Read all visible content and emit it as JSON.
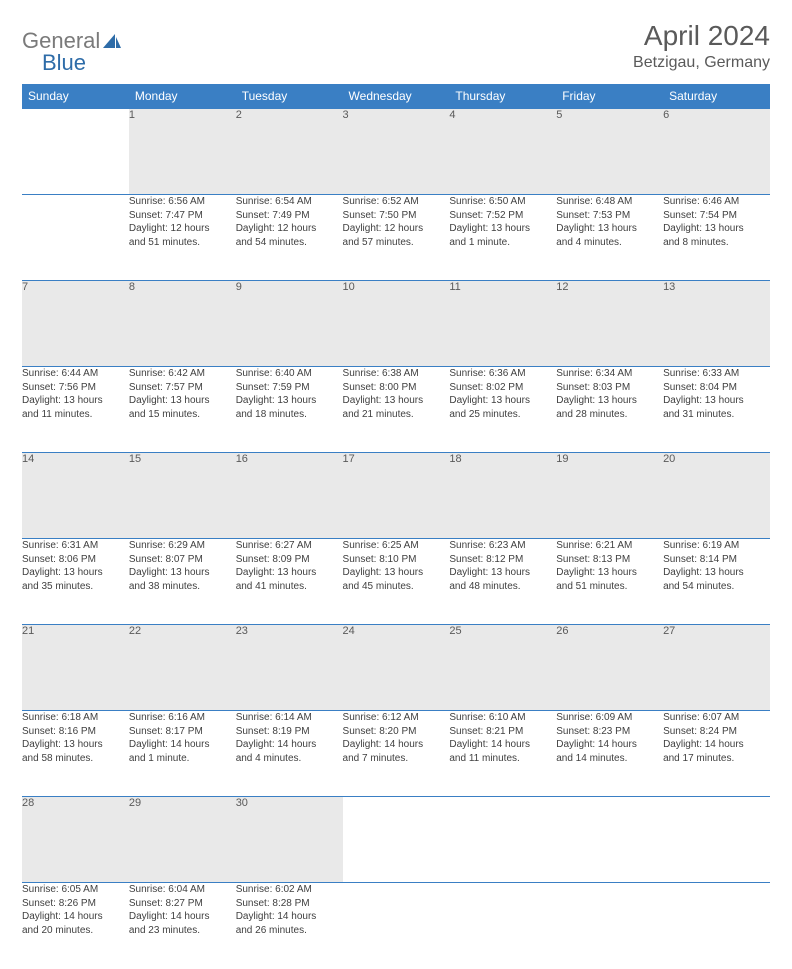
{
  "logo": {
    "part1": "General",
    "part2": "Blue"
  },
  "title": "April 2024",
  "location": "Betzigau, Germany",
  "colors": {
    "header_bg": "#3a7fc4",
    "header_fg": "#ffffff",
    "daynum_bg": "#e9e9e9",
    "border": "#3a7fc4",
    "text": "#404040",
    "logo_gray": "#7a7a7a",
    "logo_blue": "#2e6ca8"
  },
  "weekdays": [
    "Sunday",
    "Monday",
    "Tuesday",
    "Wednesday",
    "Thursday",
    "Friday",
    "Saturday"
  ],
  "weeks": [
    [
      null,
      {
        "n": "1",
        "l1": "Sunrise: 6:56 AM",
        "l2": "Sunset: 7:47 PM",
        "l3": "Daylight: 12 hours",
        "l4": "and 51 minutes."
      },
      {
        "n": "2",
        "l1": "Sunrise: 6:54 AM",
        "l2": "Sunset: 7:49 PM",
        "l3": "Daylight: 12 hours",
        "l4": "and 54 minutes."
      },
      {
        "n": "3",
        "l1": "Sunrise: 6:52 AM",
        "l2": "Sunset: 7:50 PM",
        "l3": "Daylight: 12 hours",
        "l4": "and 57 minutes."
      },
      {
        "n": "4",
        "l1": "Sunrise: 6:50 AM",
        "l2": "Sunset: 7:52 PM",
        "l3": "Daylight: 13 hours",
        "l4": "and 1 minute."
      },
      {
        "n": "5",
        "l1": "Sunrise: 6:48 AM",
        "l2": "Sunset: 7:53 PM",
        "l3": "Daylight: 13 hours",
        "l4": "and 4 minutes."
      },
      {
        "n": "6",
        "l1": "Sunrise: 6:46 AM",
        "l2": "Sunset: 7:54 PM",
        "l3": "Daylight: 13 hours",
        "l4": "and 8 minutes."
      }
    ],
    [
      {
        "n": "7",
        "l1": "Sunrise: 6:44 AM",
        "l2": "Sunset: 7:56 PM",
        "l3": "Daylight: 13 hours",
        "l4": "and 11 minutes."
      },
      {
        "n": "8",
        "l1": "Sunrise: 6:42 AM",
        "l2": "Sunset: 7:57 PM",
        "l3": "Daylight: 13 hours",
        "l4": "and 15 minutes."
      },
      {
        "n": "9",
        "l1": "Sunrise: 6:40 AM",
        "l2": "Sunset: 7:59 PM",
        "l3": "Daylight: 13 hours",
        "l4": "and 18 minutes."
      },
      {
        "n": "10",
        "l1": "Sunrise: 6:38 AM",
        "l2": "Sunset: 8:00 PM",
        "l3": "Daylight: 13 hours",
        "l4": "and 21 minutes."
      },
      {
        "n": "11",
        "l1": "Sunrise: 6:36 AM",
        "l2": "Sunset: 8:02 PM",
        "l3": "Daylight: 13 hours",
        "l4": "and 25 minutes."
      },
      {
        "n": "12",
        "l1": "Sunrise: 6:34 AM",
        "l2": "Sunset: 8:03 PM",
        "l3": "Daylight: 13 hours",
        "l4": "and 28 minutes."
      },
      {
        "n": "13",
        "l1": "Sunrise: 6:33 AM",
        "l2": "Sunset: 8:04 PM",
        "l3": "Daylight: 13 hours",
        "l4": "and 31 minutes."
      }
    ],
    [
      {
        "n": "14",
        "l1": "Sunrise: 6:31 AM",
        "l2": "Sunset: 8:06 PM",
        "l3": "Daylight: 13 hours",
        "l4": "and 35 minutes."
      },
      {
        "n": "15",
        "l1": "Sunrise: 6:29 AM",
        "l2": "Sunset: 8:07 PM",
        "l3": "Daylight: 13 hours",
        "l4": "and 38 minutes."
      },
      {
        "n": "16",
        "l1": "Sunrise: 6:27 AM",
        "l2": "Sunset: 8:09 PM",
        "l3": "Daylight: 13 hours",
        "l4": "and 41 minutes."
      },
      {
        "n": "17",
        "l1": "Sunrise: 6:25 AM",
        "l2": "Sunset: 8:10 PM",
        "l3": "Daylight: 13 hours",
        "l4": "and 45 minutes."
      },
      {
        "n": "18",
        "l1": "Sunrise: 6:23 AM",
        "l2": "Sunset: 8:12 PM",
        "l3": "Daylight: 13 hours",
        "l4": "and 48 minutes."
      },
      {
        "n": "19",
        "l1": "Sunrise: 6:21 AM",
        "l2": "Sunset: 8:13 PM",
        "l3": "Daylight: 13 hours",
        "l4": "and 51 minutes."
      },
      {
        "n": "20",
        "l1": "Sunrise: 6:19 AM",
        "l2": "Sunset: 8:14 PM",
        "l3": "Daylight: 13 hours",
        "l4": "and 54 minutes."
      }
    ],
    [
      {
        "n": "21",
        "l1": "Sunrise: 6:18 AM",
        "l2": "Sunset: 8:16 PM",
        "l3": "Daylight: 13 hours",
        "l4": "and 58 minutes."
      },
      {
        "n": "22",
        "l1": "Sunrise: 6:16 AM",
        "l2": "Sunset: 8:17 PM",
        "l3": "Daylight: 14 hours",
        "l4": "and 1 minute."
      },
      {
        "n": "23",
        "l1": "Sunrise: 6:14 AM",
        "l2": "Sunset: 8:19 PM",
        "l3": "Daylight: 14 hours",
        "l4": "and 4 minutes."
      },
      {
        "n": "24",
        "l1": "Sunrise: 6:12 AM",
        "l2": "Sunset: 8:20 PM",
        "l3": "Daylight: 14 hours",
        "l4": "and 7 minutes."
      },
      {
        "n": "25",
        "l1": "Sunrise: 6:10 AM",
        "l2": "Sunset: 8:21 PM",
        "l3": "Daylight: 14 hours",
        "l4": "and 11 minutes."
      },
      {
        "n": "26",
        "l1": "Sunrise: 6:09 AM",
        "l2": "Sunset: 8:23 PM",
        "l3": "Daylight: 14 hours",
        "l4": "and 14 minutes."
      },
      {
        "n": "27",
        "l1": "Sunrise: 6:07 AM",
        "l2": "Sunset: 8:24 PM",
        "l3": "Daylight: 14 hours",
        "l4": "and 17 minutes."
      }
    ],
    [
      {
        "n": "28",
        "l1": "Sunrise: 6:05 AM",
        "l2": "Sunset: 8:26 PM",
        "l3": "Daylight: 14 hours",
        "l4": "and 20 minutes."
      },
      {
        "n": "29",
        "l1": "Sunrise: 6:04 AM",
        "l2": "Sunset: 8:27 PM",
        "l3": "Daylight: 14 hours",
        "l4": "and 23 minutes."
      },
      {
        "n": "30",
        "l1": "Sunrise: 6:02 AM",
        "l2": "Sunset: 8:28 PM",
        "l3": "Daylight: 14 hours",
        "l4": "and 26 minutes."
      },
      null,
      null,
      null,
      null
    ]
  ]
}
